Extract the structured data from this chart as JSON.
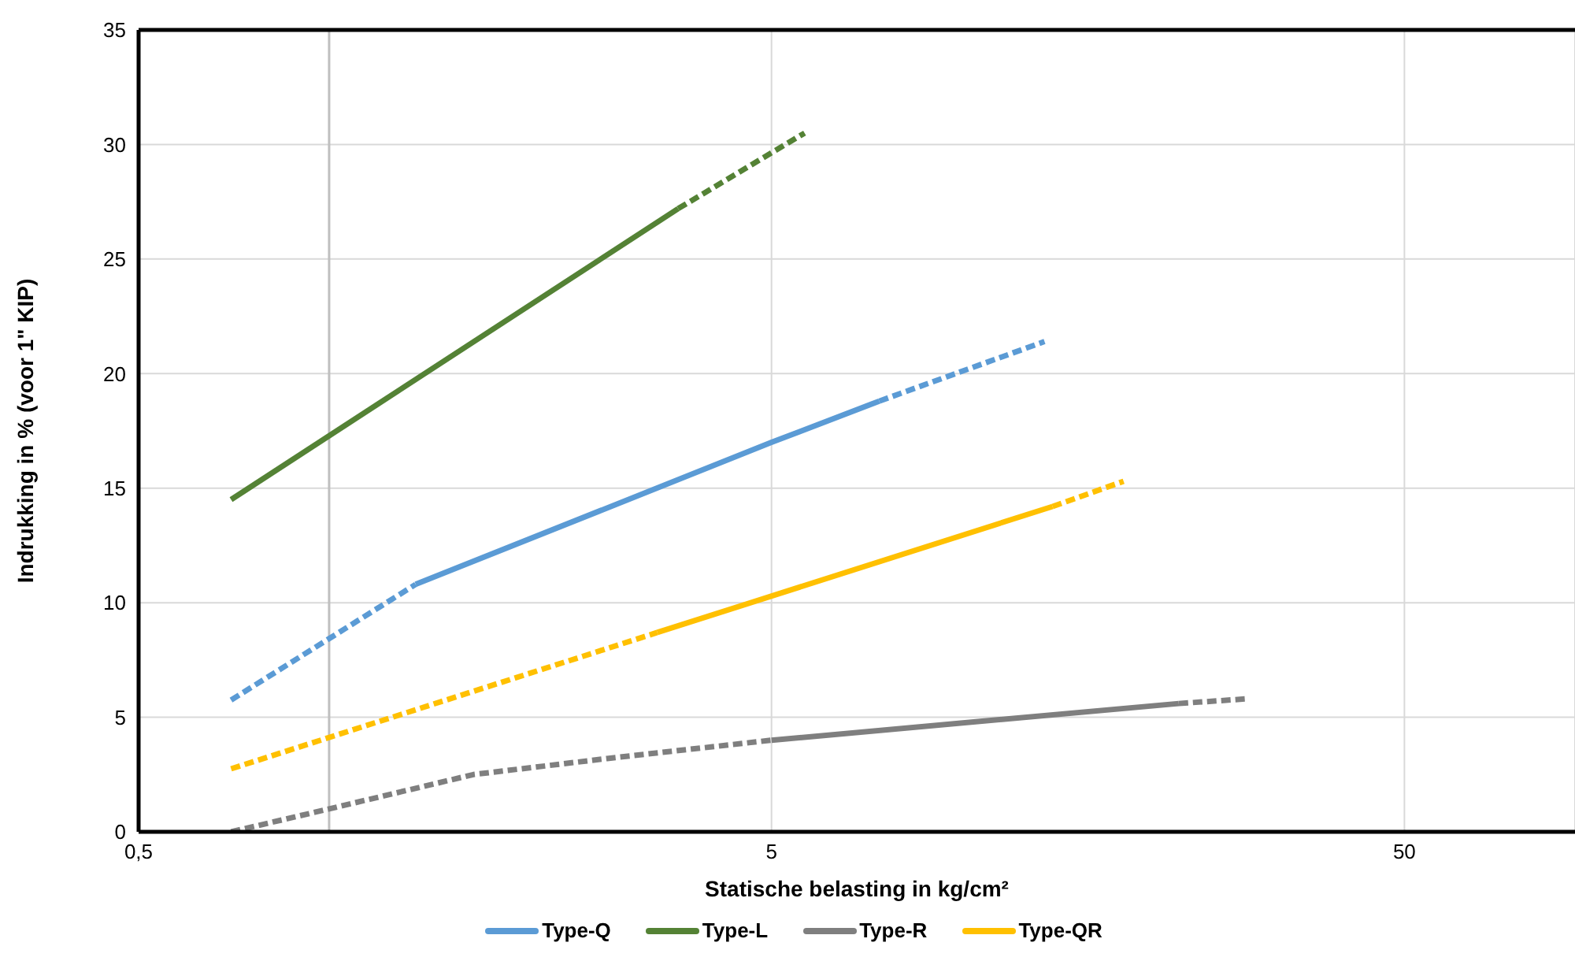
{
  "chart_data": {
    "type": "line",
    "xlabel": "Statische belasting in kg/cm²",
    "ylabel": "Indrukking in % (voor 1\" KIP)",
    "log": "x",
    "xlim": [
      0.5,
      93
    ],
    "xticks": [
      {
        "value": 0.5,
        "label": "0,5"
      },
      5,
      50
    ],
    "ylim": [
      0,
      35
    ],
    "yticks": [
      0,
      5,
      10,
      15,
      20,
      25,
      30,
      35
    ],
    "grid": true,
    "legend": "bottom",
    "marker": "none",
    "ref_lines": [
      {
        "axis": "x",
        "value": 1,
        "color": "#bfbfbf"
      }
    ],
    "series": [
      {
        "name": "Type-Q",
        "color": "#5b9bd5",
        "line_style": "solid",
        "x": [
          1.37,
          5,
          7.4
        ],
        "values": [
          10.8,
          17.0,
          18.8
        ]
      },
      {
        "color": "#5b9bd5",
        "line_style": "dashed",
        "x": [
          0.7,
          1.37
        ],
        "values": [
          5.75,
          10.8
        ]
      },
      {
        "color": "#5b9bd5",
        "line_style": "dashed",
        "x": [
          7.4,
          13.5
        ],
        "values": [
          18.8,
          21.4
        ]
      },
      {
        "name": "Type-L",
        "color": "#548235",
        "line_style": "solid",
        "x": [
          0.7,
          3.56
        ],
        "values": [
          14.5,
          27.2
        ]
      },
      {
        "color": "#548235",
        "line_style": "dashed",
        "x": [
          3.56,
          5.64
        ],
        "values": [
          27.2,
          30.5
        ]
      },
      {
        "name": "Type-R",
        "color": "#7f7f7f",
        "line_style": "solid",
        "x": [
          5,
          22
        ],
        "values": [
          4.0,
          5.6
        ]
      },
      {
        "color": "#7f7f7f",
        "line_style": "dashed",
        "x": [
          0.7,
          1.0,
          1.69,
          2.75,
          5
        ],
        "values": [
          0,
          1.0,
          2.5,
          3.2,
          4.0
        ]
      },
      {
        "color": "#7f7f7f",
        "line_style": "dashed",
        "x": [
          22,
          28
        ],
        "values": [
          5.6,
          5.8
        ]
      },
      {
        "name": "Type-QR",
        "color": "#ffc000",
        "line_style": "solid",
        "x": [
          3.3,
          13.9
        ],
        "values": [
          8.7,
          14.2
        ]
      },
      {
        "color": "#ffc000",
        "line_style": "dashed",
        "x": [
          0.7,
          3.3
        ],
        "values": [
          2.75,
          8.7
        ]
      },
      {
        "color": "#ffc000",
        "line_style": "dashed",
        "x": [
          13.9,
          18
        ],
        "values": [
          14.2,
          15.3
        ]
      }
    ]
  }
}
